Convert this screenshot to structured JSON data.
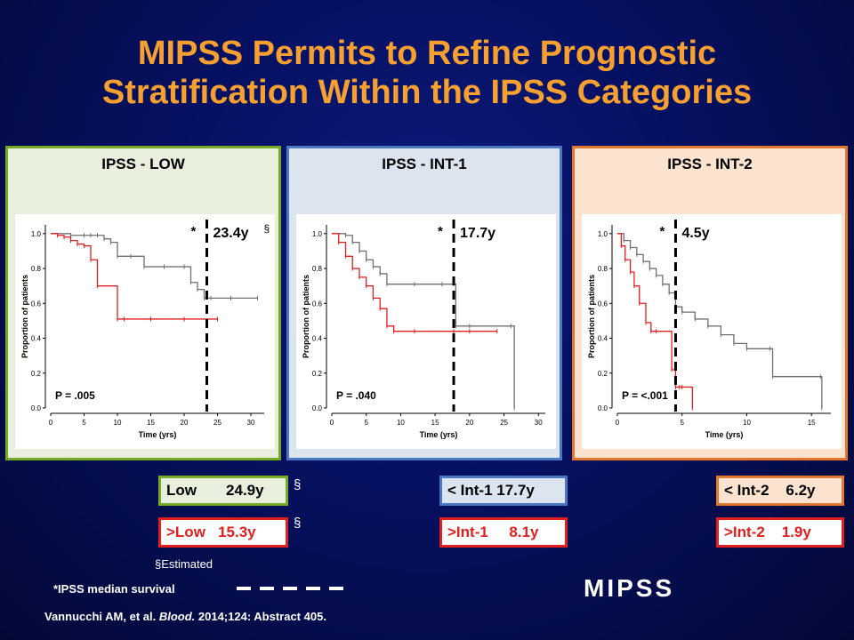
{
  "title": {
    "line1": "MIPSS Permits to Refine Prognostic",
    "line2": "Stratification Within the IPSS Categories"
  },
  "colors": {
    "title": "#f5a030",
    "mipss_high": "#e02020",
    "mipss_low": "#707070",
    "panel_low_border": "#78a828",
    "panel_int1_border": "#4a78c0",
    "panel_int2_border": "#e07830"
  },
  "panels": [
    {
      "title": "IPSS - LOW",
      "bg": "#e8efdc",
      "border": "#78a828"
    },
    {
      "title": "IPSS - INT-1",
      "bg": "#dce4f0",
      "border": "#4a78c0"
    },
    {
      "title": "IPSS - INT-2",
      "bg": "#fbe3cf",
      "border": "#e07830"
    }
  ],
  "chart_data": [
    {
      "type": "line",
      "subtype": "kaplan-meier",
      "xlabel": "Time (yrs)",
      "ylabel": "Proportion of patients",
      "xlim": [
        0,
        32
      ],
      "ylim": [
        0,
        1.05
      ],
      "xticks": [
        "0",
        "5",
        "10",
        "15",
        "20",
        "25",
        "30"
      ],
      "yticks": [
        "0.0",
        "0.2",
        "0.4",
        "0.6",
        "0.8",
        "1.0"
      ],
      "annotation_p": "P = .005",
      "median_line_x": 23.4,
      "median_label": "23.4y",
      "median_star": "*",
      "median_mark": "§",
      "series": [
        {
          "color": "#707070",
          "x": [
            0,
            3,
            5,
            6,
            7,
            8,
            9,
            10,
            12,
            14,
            17,
            20,
            21,
            22,
            23,
            24,
            27,
            31
          ],
          "y": [
            1.0,
            0.99,
            0.99,
            0.99,
            0.99,
            0.97,
            0.95,
            0.87,
            0.87,
            0.81,
            0.81,
            0.81,
            0.72,
            0.68,
            0.63,
            0.63,
            0.63,
            0.63
          ]
        },
        {
          "color": "#e02020",
          "x": [
            0,
            1,
            2,
            3,
            4,
            5,
            6,
            7,
            10,
            11,
            15,
            20,
            25
          ],
          "y": [
            1.0,
            0.99,
            0.98,
            0.96,
            0.94,
            0.93,
            0.85,
            0.7,
            0.51,
            0.51,
            0.51,
            0.51,
            0.51
          ]
        }
      ]
    },
    {
      "type": "line",
      "subtype": "kaplan-meier",
      "xlabel": "Time (yrs)",
      "ylabel": "Proportion of patients",
      "xlim": [
        0,
        31
      ],
      "ylim": [
        0,
        1.05
      ],
      "xticks": [
        "0",
        "5",
        "10",
        "15",
        "20",
        "25",
        "30"
      ],
      "yticks": [
        "0.0",
        "0.2",
        "0.4",
        "0.6",
        "0.8",
        "1.0"
      ],
      "annotation_p": "P = .040",
      "median_line_x": 17.7,
      "median_label": "17.7y",
      "median_star": "*",
      "median_mark": "",
      "series": [
        {
          "color": "#707070",
          "x": [
            0,
            2,
            3,
            4,
            5,
            6,
            7,
            8,
            12,
            16,
            17.7,
            18,
            20,
            26,
            26.5
          ],
          "y": [
            1.0,
            0.99,
            0.95,
            0.9,
            0.85,
            0.81,
            0.77,
            0.71,
            0.71,
            0.71,
            0.71,
            0.47,
            0.47,
            0.47,
            0.0
          ]
        },
        {
          "color": "#e02020",
          "x": [
            0,
            1,
            2,
            3,
            4,
            5,
            6,
            7,
            8,
            9,
            12,
            17.7,
            20,
            24
          ],
          "y": [
            1.0,
            0.95,
            0.87,
            0.8,
            0.75,
            0.7,
            0.63,
            0.57,
            0.47,
            0.44,
            0.44,
            0.44,
            0.44,
            0.44
          ]
        }
      ]
    },
    {
      "type": "line",
      "subtype": "kaplan-meier",
      "xlabel": "Time (yrs)",
      "ylabel": "Proportion of patients",
      "xlim": [
        0,
        16.5
      ],
      "ylim": [
        0,
        1.05
      ],
      "xticks": [
        "0",
        "5",
        "10",
        "15"
      ],
      "yticks": [
        "0.0",
        "0.2",
        "0.4",
        "0.6",
        "0.8",
        "1.0"
      ],
      "annotation_p": "P = <.001",
      "median_line_x": 4.5,
      "median_label": "4.5y",
      "median_star": "*",
      "median_mark": "",
      "series": [
        {
          "color": "#707070",
          "x": [
            0,
            0.5,
            1,
            1.5,
            2,
            2.5,
            3,
            3.5,
            4,
            4.5,
            5,
            6,
            7,
            8,
            9,
            10,
            11.8,
            12,
            15.7,
            15.8
          ],
          "y": [
            1.0,
            0.96,
            0.92,
            0.88,
            0.84,
            0.8,
            0.76,
            0.71,
            0.66,
            0.58,
            0.55,
            0.51,
            0.47,
            0.42,
            0.37,
            0.34,
            0.34,
            0.18,
            0.18,
            0.0
          ]
        },
        {
          "color": "#e02020",
          "x": [
            0,
            0.3,
            0.6,
            1,
            1.3,
            1.7,
            2.2,
            2.6,
            3,
            4.2,
            4.5,
            4.8,
            5,
            5.8
          ],
          "y": [
            1.0,
            0.93,
            0.85,
            0.78,
            0.7,
            0.6,
            0.49,
            0.44,
            0.44,
            0.22,
            0.12,
            0.12,
            0.12,
            0.0
          ]
        }
      ]
    }
  ],
  "boxes": {
    "low": {
      "label": "Low       24.9y"
    },
    "low_high": {
      "label": ">Low   15.3y"
    },
    "int1_low": {
      "label": "< Int-1 17.7y"
    },
    "int1_high": {
      "label": ">Int-1     8.1y"
    },
    "int2_low": {
      "label": "< Int-2    6.2y"
    },
    "int2_high": {
      "label": ">Int-2    1.9y"
    }
  },
  "marks": {
    "section": "§"
  },
  "footer": {
    "estimated": "§Estimated",
    "ipss_median": "*IPSS median survival",
    "citation_pre": "Vannucchi AM, et al. ",
    "citation_journal": "Blood.",
    "citation_post": " 2014;124: Abstract 405."
  },
  "legend_mipss": "MIPSS"
}
